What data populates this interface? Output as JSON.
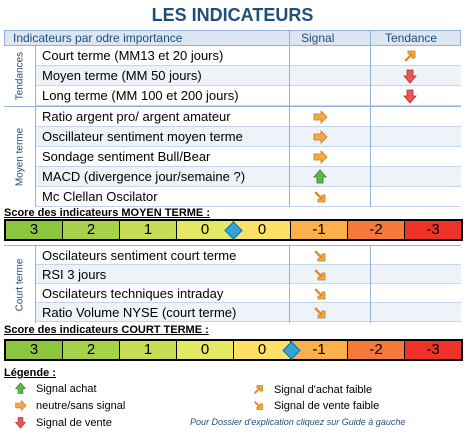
{
  "title": "LES INDICATEURS",
  "header": {
    "col_indicators": "Indicateurs par odre importance",
    "col_signal": "Signal",
    "col_tendance": "Tendance"
  },
  "groups": {
    "tendances": {
      "label": "Tendances",
      "rows": [
        {
          "label": "Court terme (MM13 et 20 jours)",
          "tendance_icon": "arrow-up-right-orange-icon"
        },
        {
          "label": "Moyen terme (MM 50 jours)",
          "tendance_icon": "arrow-down-red-icon"
        },
        {
          "label": "Long terme (MM 100 et 200 jours)",
          "tendance_icon": "arrow-down-red-icon"
        }
      ]
    },
    "moyen_terme": {
      "label": "Moyen terme",
      "rows": [
        {
          "label": "Ratio argent pro/ argent amateur",
          "signal_icon": "arrow-right-orange-icon"
        },
        {
          "label": "Oscillateur sentiment moyen terme",
          "signal_icon": "arrow-right-orange-icon"
        },
        {
          "label": "Sondage sentiment Bull/Bear",
          "signal_icon": "arrow-right-orange-icon"
        },
        {
          "label": "MACD (divergence jour/semaine ?)",
          "signal_icon": "arrow-up-green-icon"
        },
        {
          "label": "Mc Clellan Oscilator",
          "signal_icon": "arrow-down-right-orange-icon"
        }
      ]
    },
    "court_terme": {
      "label": "Court terme",
      "rows": [
        {
          "label": "Oscilateurs sentiment court terme",
          "signal_icon": "arrow-down-right-orange-icon"
        },
        {
          "label": "RSI 3 jours",
          "signal_icon": "arrow-down-right-orange-icon"
        },
        {
          "label": "Oscilateurs techniques intraday",
          "signal_icon": "arrow-down-right-orange-icon"
        },
        {
          "label": "Ratio Volume NYSE (court terme)",
          "signal_icon": "arrow-down-right-orange-icon"
        }
      ]
    }
  },
  "score_moyen": {
    "title": "Score des indicateurs MOYEN TERME :",
    "cells": [
      "3",
      "2",
      "1",
      "0",
      "0",
      "-1",
      "-2",
      "-3"
    ],
    "marker_value": 0
  },
  "score_court": {
    "title": "Score des indicateurs COURT TERME :",
    "cells": [
      "3",
      "2",
      "1",
      "0",
      "0",
      "-1",
      "-2",
      "-3"
    ],
    "marker_value": -0.5
  },
  "scale_colors": [
    "#8cc63f",
    "#a8d14a",
    "#c6dd55",
    "#e4e963",
    "#fde065",
    "#fbb04c",
    "#f6793b",
    "#ee3129"
  ],
  "legend": {
    "title": "Légende :",
    "items": [
      {
        "icon": "arrow-up-green-icon",
        "label": "Signal achat"
      },
      {
        "icon": "arrow-right-orange-icon",
        "label": "neutre/sans signal"
      },
      {
        "icon": "arrow-down-red-icon",
        "label": "Signal de vente"
      },
      {
        "icon": "arrow-up-right-orange-icon",
        "label": "Signal d'achat faible"
      },
      {
        "icon": "arrow-down-right-orange-icon",
        "label": "Signal de vente faible"
      }
    ]
  },
  "footnote": "Pour Dossier d'explication cliquez sur Guide à gauche"
}
